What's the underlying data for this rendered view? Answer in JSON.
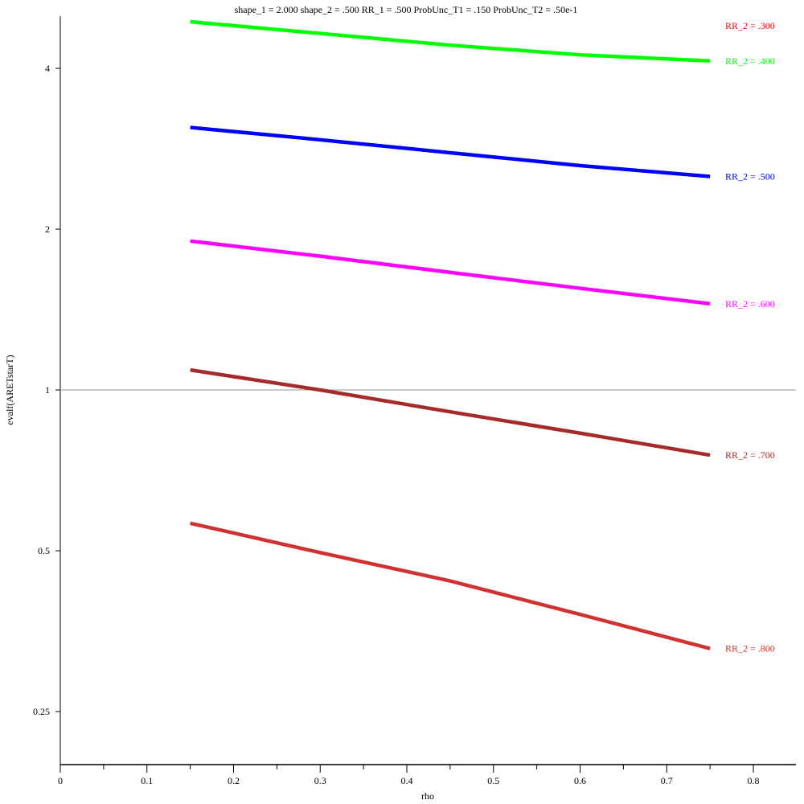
{
  "chart_data": {
    "type": "line",
    "title": "shape_1 = 2.000  shape_2 = .500  RR_1 = .500  ProbUnc_T1 = .150  ProbUnc_T2 = .50e-1",
    "xlabel": "rho",
    "ylabel": "evalf(ARETstarT)",
    "xlim": [
      0,
      0.85
    ],
    "ylim": [
      0.2,
      5
    ],
    "yscale": "log",
    "reference_line": 1,
    "x_ticks": [
      "0",
      "0.1",
      "0.2",
      "0.3",
      "0.4",
      "0.5",
      "0.6",
      "0.7",
      "0.8"
    ],
    "y_ticks": [
      {
        "value": 0.25,
        "label": "0.25"
      },
      {
        "value": 0.5,
        "label": "0.5"
      },
      {
        "value": 1,
        "label": "1"
      },
      {
        "value": 2,
        "label": "2"
      },
      {
        "value": 4,
        "label": "4"
      }
    ],
    "x": [
      0.15,
      0.3,
      0.45,
      0.6,
      0.75
    ],
    "series": [
      {
        "name": "RR_2 = .300",
        "color": "#ff0000",
        "values": null
      },
      {
        "name": "RR_2 = .400",
        "color": "#00ff00",
        "values": [
          4.89,
          4.65,
          4.42,
          4.24,
          4.13
        ]
      },
      {
        "name": "RR_2 = .500",
        "color": "#0000ff",
        "values": [
          3.1,
          2.94,
          2.78,
          2.63,
          2.51
        ]
      },
      {
        "name": "RR_2 = .600",
        "color": "#ff00ff",
        "values": [
          1.9,
          1.78,
          1.66,
          1.55,
          1.45
        ]
      },
      {
        "name": "RR_2 = .700",
        "color": "#a52a2a",
        "values": [
          1.09,
          1.0,
          0.91,
          0.83,
          0.755
        ]
      },
      {
        "name": "RR_2 = .800",
        "color": "#d03232",
        "values": [
          0.563,
          0.496,
          0.439,
          0.38,
          0.328
        ]
      }
    ]
  }
}
